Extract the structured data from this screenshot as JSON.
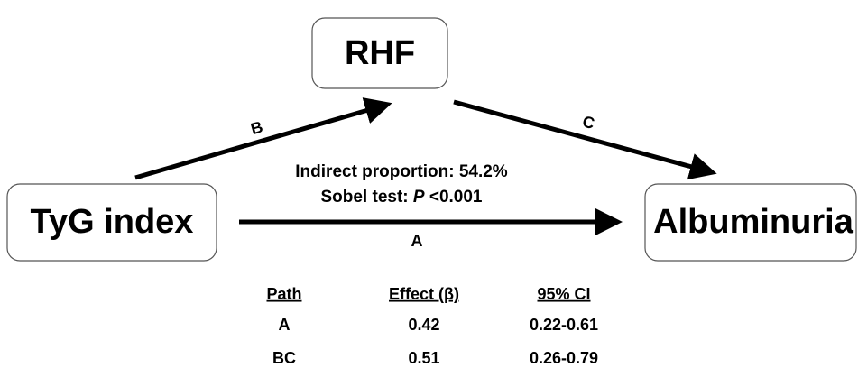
{
  "nodes": [
    {
      "label": "RHF"
    },
    {
      "label": "TyG index"
    },
    {
      "label": "Albuminuria"
    }
  ],
  "edges": [
    {
      "label": "B"
    },
    {
      "label": "C"
    },
    {
      "label": "A"
    }
  ],
  "annotations": {
    "indirect": "Indirect proportion: 54.2%",
    "sobel_label": "Sobel test:",
    "sobel_p": "P",
    "sobel_value": "<0.001"
  },
  "table": {
    "header": [
      "Path",
      "Effect (β)",
      "95% CI"
    ],
    "rows": [
      [
        "A",
        "0.42",
        "0.22-0.61"
      ],
      [
        "BC",
        "0.51",
        "0.26-0.79"
      ]
    ]
  }
}
